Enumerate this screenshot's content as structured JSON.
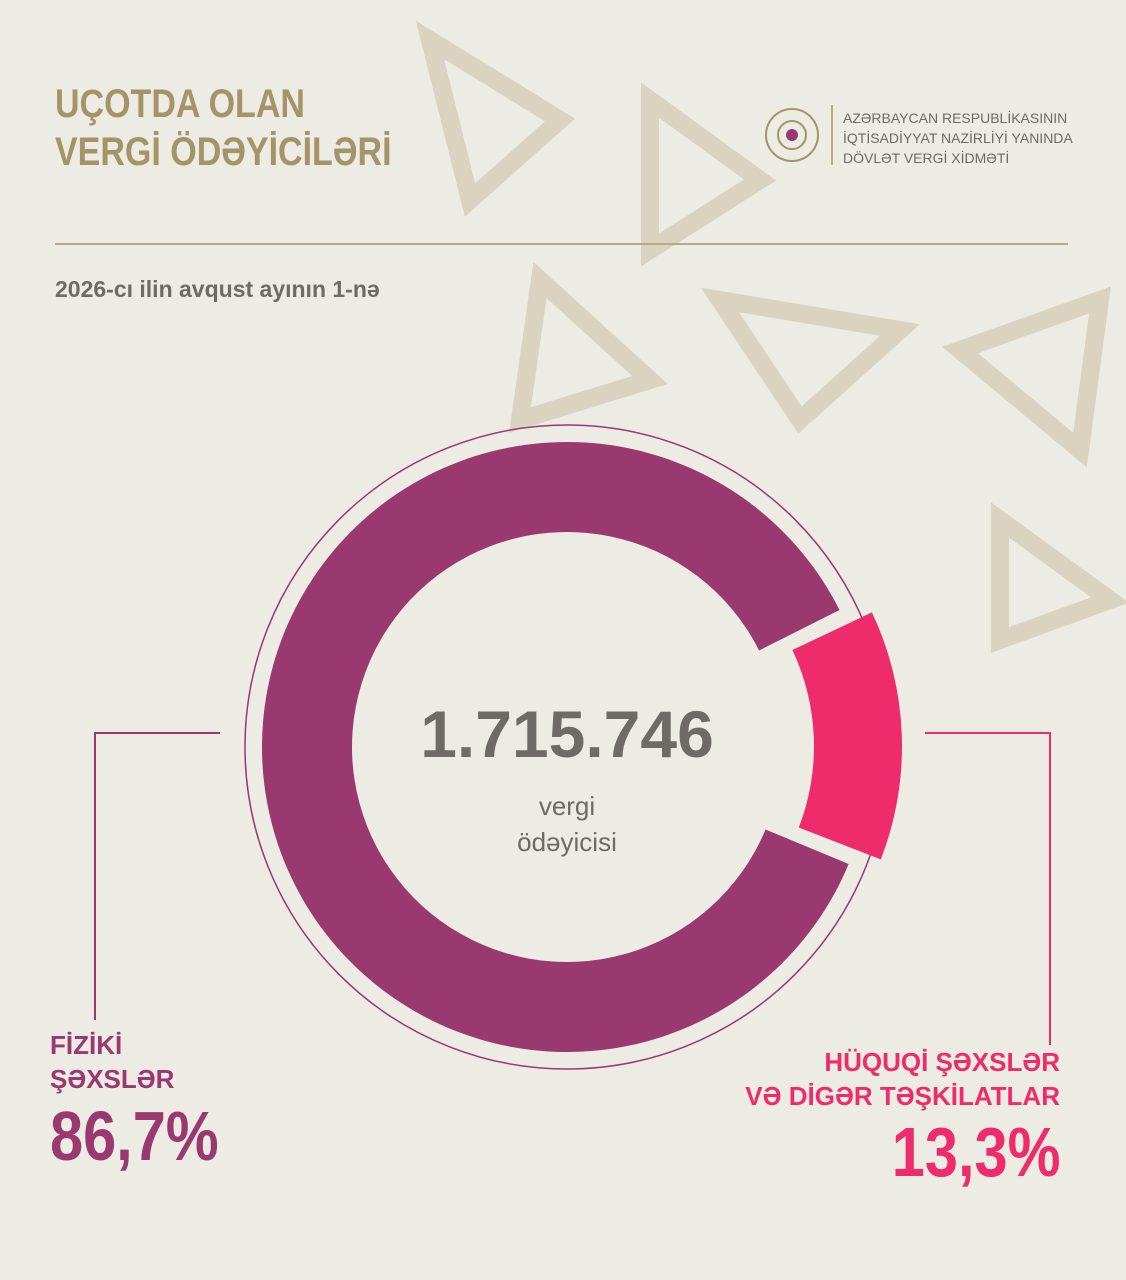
{
  "header": {
    "title": "UÇOTDA OLAN\nVERGİ ÖDƏYİCİLƏRİ",
    "org": "AZƏRBAYCAN RESPUBLİKASININ\nİQTİSADİYYAT NAZİRLİYİ YANINDA\nDÖVLƏT VERGİ XİDMƏTİ"
  },
  "chart_data": {
    "type": "donut",
    "subtitle": "2026-cı ilin avqust ayının 1-nə",
    "total": "1.715.746",
    "total_label": "vergi\nödəyicisi",
    "categories": [
      "FİZİKİ\nŞƏXSLƏR",
      "HÜQUQİ ŞƏXSLƏR\nVƏ DİGƏR TƏŞKİLATLAR"
    ],
    "values": [
      86.7,
      13.3
    ],
    "value_labels": [
      "86,7%",
      "13,3%"
    ],
    "colors": [
      "#9a3870",
      "#ee2c6c"
    ]
  }
}
